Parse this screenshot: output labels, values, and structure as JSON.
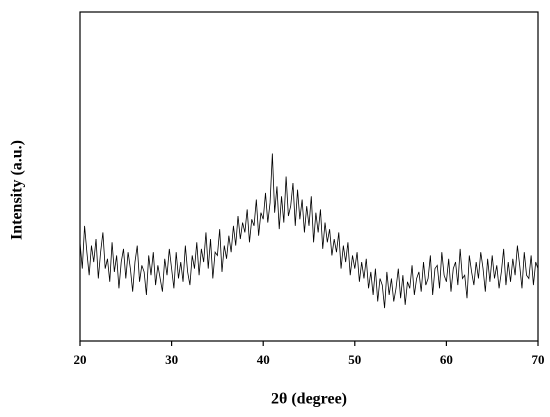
{
  "chart_data": {
    "type": "line",
    "xlabel": "2θ (degree)",
    "ylabel": "Intensity (a.u.)",
    "xlim": [
      20,
      70
    ],
    "xticks": [
      20,
      30,
      40,
      50,
      60,
      70
    ],
    "ylim": [
      0,
      100
    ],
    "series": [
      {
        "color": "#000000",
        "x": [
          20,
          20.25,
          20.5,
          20.75,
          21,
          21.25,
          21.5,
          21.75,
          22,
          22.25,
          22.5,
          22.75,
          23,
          23.25,
          23.5,
          23.75,
          24,
          24.25,
          24.5,
          24.75,
          25,
          25.25,
          25.5,
          25.75,
          26,
          26.25,
          26.5,
          26.75,
          27,
          27.25,
          27.5,
          27.75,
          28,
          28.25,
          28.5,
          28.75,
          29,
          29.25,
          29.5,
          29.75,
          30,
          30.25,
          30.5,
          30.75,
          31,
          31.25,
          31.5,
          31.75,
          32,
          32.25,
          32.5,
          32.75,
          33,
          33.25,
          33.5,
          33.75,
          34,
          34.25,
          34.5,
          34.75,
          35,
          35.25,
          35.5,
          35.75,
          36,
          36.25,
          36.5,
          36.75,
          37,
          37.25,
          37.5,
          37.75,
          38,
          38.25,
          38.5,
          38.75,
          39,
          39.25,
          39.5,
          39.75,
          40,
          40.25,
          40.5,
          40.75,
          41,
          41.25,
          41.5,
          41.75,
          42,
          42.25,
          42.5,
          42.75,
          43,
          43.25,
          43.5,
          43.75,
          44,
          44.25,
          44.5,
          44.75,
          45,
          45.25,
          45.5,
          45.75,
          46,
          46.25,
          46.5,
          46.75,
          47,
          47.25,
          47.5,
          47.75,
          48,
          48.25,
          48.5,
          48.75,
          49,
          49.25,
          49.5,
          49.75,
          50,
          50.25,
          50.5,
          50.75,
          51,
          51.25,
          51.5,
          51.75,
          52,
          52.25,
          52.5,
          52.75,
          53,
          53.25,
          53.5,
          53.75,
          54,
          54.25,
          54.5,
          54.75,
          55,
          55.25,
          55.5,
          55.75,
          56,
          56.25,
          56.5,
          56.75,
          57,
          57.25,
          57.5,
          57.75,
          58,
          58.25,
          58.5,
          58.75,
          59,
          59.25,
          59.5,
          59.75,
          60,
          60.25,
          60.5,
          60.75,
          61,
          61.25,
          61.5,
          61.75,
          62,
          62.25,
          62.5,
          62.75,
          63,
          63.25,
          63.5,
          63.75,
          64,
          64.25,
          64.5,
          64.75,
          65,
          65.25,
          65.5,
          65.75,
          66,
          66.25,
          66.5,
          66.75,
          67,
          67.25,
          67.5,
          67.75,
          68,
          68.25,
          68.5,
          68.75,
          69,
          69.25,
          69.5,
          69.75,
          70
        ],
        "values": [
          30,
          22,
          35,
          27,
          20,
          29,
          24,
          31,
          19,
          27,
          33,
          22,
          25,
          18,
          30,
          21,
          26,
          16,
          24,
          28,
          19,
          27,
          22,
          15,
          24,
          29,
          18,
          23,
          21,
          14,
          26,
          20,
          27,
          17,
          23,
          19,
          15,
          25,
          20,
          28,
          22,
          16,
          27,
          19,
          24,
          18,
          29,
          21,
          17,
          26,
          22,
          30,
          20,
          28,
          24,
          33,
          22,
          31,
          19,
          27,
          26,
          34,
          21,
          29,
          25,
          32,
          27,
          35,
          29,
          38,
          31,
          36,
          33,
          40,
          30,
          37,
          35,
          43,
          32,
          39,
          37,
          45,
          36,
          42,
          57,
          39,
          47,
          34,
          44,
          36,
          50,
          38,
          41,
          48,
          35,
          46,
          37,
          43,
          33,
          41,
          35,
          44,
          30,
          39,
          33,
          40,
          28,
          36,
          30,
          34,
          26,
          31,
          27,
          33,
          22,
          29,
          24,
          30,
          20,
          26,
          22,
          27,
          18,
          24,
          19,
          25,
          16,
          21,
          14,
          22,
          12,
          19,
          17,
          10,
          21,
          14,
          19,
          12,
          16,
          22,
          13,
          20,
          11,
          18,
          16,
          23,
          14,
          19,
          21,
          15,
          24,
          17,
          19,
          26,
          14,
          22,
          23,
          16,
          27,
          20,
          18,
          25,
          15,
          22,
          24,
          17,
          28,
          19,
          20,
          13,
          26,
          21,
          17,
          24,
          19,
          27,
          22,
          15,
          25,
          18,
          26,
          19,
          23,
          16,
          21,
          28,
          17,
          24,
          18,
          25,
          20,
          29,
          23,
          16,
          27,
          20,
          19,
          26,
          17,
          24,
          22
        ]
      }
    ]
  }
}
